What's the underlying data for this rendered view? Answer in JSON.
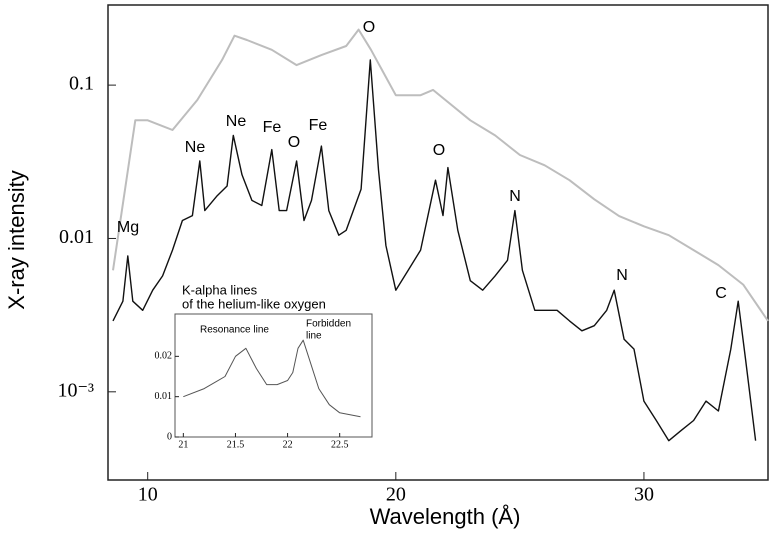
{
  "chart_data": [
    {
      "type": "line",
      "xlabel": "Wavelength (Å)",
      "ylabel": "X-ray intensity",
      "xlim": [
        8.4,
        35
      ],
      "ylim": [
        0.000266,
        0.333
      ],
      "log_y": true,
      "xticks": [
        10,
        20,
        30
      ],
      "yticks": [
        0.1,
        0.01,
        {
          "value": 0.001,
          "label": "10⁻³"
        }
      ],
      "series": [
        {
          "name": "gray",
          "color": "#bdbdbd",
          "x": [
            8.6,
            9.5,
            10,
            11,
            12,
            13,
            13.5,
            14,
            15,
            16,
            17,
            18,
            18.5,
            19,
            20,
            21,
            21.5,
            22,
            23,
            24,
            25,
            26,
            27,
            28,
            29,
            30,
            31,
            32,
            33,
            34,
            35
          ],
          "values": [
            0.0062,
            0.059,
            0.059,
            0.051,
            0.08,
            0.146,
            0.21,
            0.197,
            0.17,
            0.135,
            0.157,
            0.18,
            0.23,
            0.17,
            0.086,
            0.086,
            0.093,
            0.08,
            0.059,
            0.047,
            0.035,
            0.03,
            0.024,
            0.018,
            0.014,
            0.012,
            0.0105,
            0.0084,
            0.0067,
            0.005,
            0.0029
          ]
        },
        {
          "name": "black",
          "color": "#111111",
          "x": [
            8.6,
            9.0,
            9.2,
            9.4,
            9.8,
            10.2,
            10.6,
            11.0,
            11.4,
            11.8,
            12.1,
            12.3,
            12.8,
            13.2,
            13.45,
            13.8,
            14.2,
            14.6,
            15.0,
            15.3,
            15.6,
            16.0,
            16.3,
            16.6,
            17.0,
            17.3,
            17.7,
            18.0,
            18.6,
            18.97,
            19.3,
            19.6,
            20.0,
            20.5,
            21.0,
            21.6,
            21.9,
            22.1,
            22.5,
            23.0,
            23.5,
            24.0,
            24.5,
            24.8,
            25.1,
            25.6,
            26.5,
            27.0,
            27.5,
            28.0,
            28.5,
            28.8,
            29.2,
            29.6,
            30.0,
            30.5,
            31.0,
            31.5,
            32.0,
            32.5,
            33.0,
            33.5,
            33.8,
            34.1,
            34.5
          ],
          "values": [
            0.0029,
            0.0039,
            0.0077,
            0.0039,
            0.0034,
            0.0046,
            0.0057,
            0.0084,
            0.0131,
            0.0141,
            0.032,
            0.0152,
            0.019,
            0.022,
            0.047,
            0.026,
            0.0177,
            0.0164,
            0.038,
            0.0152,
            0.0152,
            0.032,
            0.0131,
            0.0177,
            0.04,
            0.0152,
            0.0105,
            0.0113,
            0.021,
            0.146,
            0.028,
            0.009,
            0.0046,
            0.0062,
            0.0084,
            0.024,
            0.0141,
            0.029,
            0.0113,
            0.0053,
            0.0046,
            0.0057,
            0.0072,
            0.0152,
            0.0062,
            0.0034,
            0.0034,
            0.0029,
            0.0025,
            0.0027,
            0.0034,
            0.0046,
            0.0022,
            0.0019,
            0.00087,
            0.00065,
            0.00048,
            0.00056,
            0.00065,
            0.00087,
            0.00075,
            0.0019,
            0.0039,
            0.0016,
            0.00048
          ]
        }
      ],
      "annotations": [
        "Mg",
        "Ne",
        "Ne",
        "Fe",
        "O",
        "Fe",
        "O",
        "O",
        "N",
        "N",
        "C",
        "K-alpha lines",
        "of the helium-like oxygen"
      ]
    },
    {
      "type": "line",
      "xlim": [
        20.92,
        22.81
      ],
      "ylim": [
        0,
        0.0305
      ],
      "xticks": [
        21,
        21.5,
        22,
        22.5
      ],
      "yticks": [
        0,
        0.01,
        0.02
      ],
      "series": [
        {
          "name": "spectrum",
          "color": "#555555",
          "x": [
            21.0,
            21.2,
            21.4,
            21.5,
            21.6,
            21.7,
            21.8,
            21.9,
            22.0,
            22.05,
            22.1,
            22.15,
            22.2,
            22.3,
            22.4,
            22.5,
            22.7
          ],
          "values": [
            0.01,
            0.012,
            0.015,
            0.02,
            0.022,
            0.017,
            0.013,
            0.013,
            0.014,
            0.016,
            0.022,
            0.024,
            0.02,
            0.012,
            0.008,
            0.006,
            0.005
          ]
        }
      ],
      "annotations": [
        "Resonance line",
        "Forbidden",
        "line"
      ]
    }
  ]
}
